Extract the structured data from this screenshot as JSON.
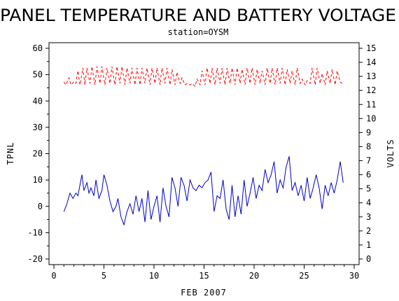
{
  "chart_data": {
    "type": "line",
    "title": "PANEL TEMPERATURE AND BATTERY VOLTAGE",
    "subtitle": "station=OYSM",
    "xlabel": "FEB 2007",
    "ylabel_left": "TPNL",
    "ylabel_right": "VOLTS",
    "xlim": [
      0,
      30
    ],
    "ylim_left": [
      -20,
      60
    ],
    "ylim_right": [
      0,
      15
    ],
    "x_ticks": [
      0,
      5,
      10,
      15,
      20,
      25,
      30
    ],
    "y_ticks_left": [
      -20,
      -10,
      0,
      10,
      20,
      30,
      40,
      50,
      60
    ],
    "y_ticks_right": [
      0,
      1,
      2,
      3,
      4,
      5,
      6,
      7,
      8,
      9,
      10,
      11,
      12,
      13,
      14,
      15
    ],
    "colors": {
      "voltage": "#ff0000",
      "temperature": "#0000cc",
      "axes": "#000000"
    },
    "series": [
      {
        "axis": "right",
        "style": "dashed",
        "color": "#ff0000",
        "x": [
          1.0,
          1.2,
          1.5,
          1.7,
          2.0,
          2.2,
          2.4,
          2.6,
          2.9,
          3.1,
          3.3,
          3.6,
          3.8,
          4.1,
          4.3,
          4.6,
          4.8,
          5.1,
          5.3,
          5.6,
          5.8,
          6.1,
          6.3,
          6.6,
          6.8,
          7.1,
          7.3,
          7.6,
          7.8,
          8.1,
          8.3,
          8.6,
          8.8,
          9.1,
          9.3,
          9.6,
          9.8,
          10.1,
          10.3,
          10.6,
          10.8,
          11.1,
          11.3,
          11.6,
          11.8,
          12.1,
          12.3,
          12.6,
          12.8,
          13.1,
          13.3,
          13.6,
          13.8,
          14.1,
          14.3,
          14.6,
          14.8,
          15.1,
          15.3,
          15.6,
          15.8,
          16.1,
          16.3,
          16.6,
          16.8,
          17.1,
          17.3,
          17.6,
          17.8,
          18.1,
          18.3,
          18.6,
          18.8,
          19.1,
          19.3,
          19.6,
          19.8,
          20.1,
          20.3,
          20.6,
          20.8,
          21.1,
          21.3,
          21.6,
          21.8,
          22.1,
          22.3,
          22.6,
          22.8,
          23.1,
          23.3,
          23.6,
          23.8,
          24.1,
          24.3,
          24.6,
          24.8,
          25.1,
          25.3,
          25.6,
          25.8,
          26.1,
          26.3,
          26.6,
          26.8,
          27.1,
          27.3,
          27.6,
          27.8,
          28.1,
          28.3,
          28.6,
          28.8
        ],
        "values": [
          12.6,
          12.4,
          12.9,
          12.4,
          12.6,
          12.5,
          13.4,
          12.4,
          13.6,
          12.4,
          13.6,
          12.5,
          13.7,
          12.4,
          13.7,
          12.5,
          13.7,
          12.4,
          13.6,
          12.5,
          13.7,
          12.4,
          13.7,
          12.5,
          13.7,
          12.4,
          13.6,
          12.5,
          13.6,
          12.4,
          13.6,
          12.4,
          13.6,
          12.5,
          13.6,
          12.4,
          13.6,
          12.5,
          13.6,
          12.4,
          13.6,
          12.5,
          13.6,
          12.4,
          13.5,
          12.4,
          13.3,
          12.5,
          12.9,
          12.4,
          12.5,
          12.4,
          12.5,
          12.3,
          12.8,
          12.4,
          13.4,
          12.4,
          13.6,
          12.5,
          13.6,
          12.4,
          13.6,
          12.5,
          13.6,
          12.4,
          13.6,
          12.5,
          13.6,
          12.4,
          13.6,
          12.5,
          13.5,
          12.4,
          13.6,
          12.5,
          13.6,
          12.4,
          13.5,
          12.5,
          13.4,
          12.4,
          13.6,
          12.5,
          13.6,
          12.4,
          13.6,
          12.5,
          13.6,
          12.4,
          13.5,
          12.5,
          13.4,
          12.4,
          13.6,
          12.5,
          12.8,
          12.4,
          12.7,
          12.5,
          13.6,
          12.4,
          13.6,
          12.5,
          13.2,
          12.4,
          13.4,
          12.5,
          13.5,
          12.4,
          13.4,
          12.6,
          12.5
        ]
      },
      {
        "axis": "left",
        "style": "solid",
        "color": "#0000cc",
        "x": [
          1.0,
          1.3,
          1.6,
          1.9,
          2.2,
          2.4,
          2.6,
          2.8,
          3.0,
          3.3,
          3.5,
          3.7,
          4.0,
          4.2,
          4.5,
          4.8,
          5.0,
          5.3,
          5.6,
          5.9,
          6.2,
          6.4,
          6.7,
          7.0,
          7.3,
          7.6,
          7.9,
          8.2,
          8.5,
          8.8,
          9.1,
          9.4,
          9.7,
          10.0,
          10.3,
          10.6,
          10.9,
          11.2,
          11.5,
          11.8,
          12.1,
          12.4,
          12.7,
          13.0,
          13.3,
          13.6,
          13.9,
          14.2,
          14.5,
          14.8,
          15.1,
          15.4,
          15.7,
          16.0,
          16.3,
          16.6,
          16.9,
          17.2,
          17.5,
          17.8,
          18.1,
          18.4,
          18.7,
          19.0,
          19.3,
          19.6,
          19.9,
          20.2,
          20.5,
          20.8,
          21.1,
          21.4,
          21.7,
          22.0,
          22.3,
          22.6,
          22.9,
          23.2,
          23.5,
          23.8,
          24.1,
          24.4,
          24.7,
          25.0,
          25.3,
          25.6,
          25.9,
          26.2,
          26.5,
          26.8,
          27.1,
          27.4,
          27.7,
          28.0,
          28.3,
          28.6,
          28.9
        ],
        "values": [
          -2,
          1,
          5,
          3,
          5,
          4,
          8,
          12,
          6,
          9,
          5,
          7,
          4,
          10,
          3,
          6,
          12,
          8,
          2,
          -2,
          0,
          3,
          -4,
          -7,
          -2,
          1,
          -3,
          4,
          -2,
          3,
          -6,
          6,
          -5,
          0,
          4,
          -6,
          7,
          0,
          -4,
          11,
          7,
          0,
          11,
          8,
          2,
          10,
          7,
          6,
          8,
          7,
          9,
          10,
          13,
          -2,
          4,
          3,
          10,
          -1,
          -5,
          8,
          -4,
          4,
          -3,
          10,
          0,
          5,
          11,
          3,
          8,
          6,
          14,
          9,
          12,
          17,
          5,
          10,
          7,
          15,
          19,
          6,
          9,
          4,
          8,
          2,
          11,
          3,
          7,
          12,
          7,
          -1,
          8,
          4,
          9,
          5,
          10,
          17,
          9
        ]
      }
    ]
  }
}
